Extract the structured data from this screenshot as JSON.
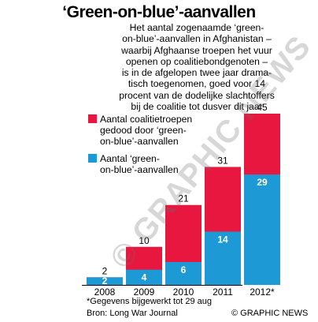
{
  "title": "‘Green-on-blue’-aanvallen",
  "intro": [
    "Het aantal zogenaamde ‘green-",
    "on-blue’-aanvallen in Afghanistan –",
    "waarbij Afghaanse troepen het vuur",
    "openen op coalitiebondgenoten –",
    "is in de afgelopen twee jaar drama-",
    "tisch toegenomen, goed voor 14",
    "procent van de dodelijke slachtoffers",
    "bij de coalitie tot dusver dit jaar"
  ],
  "footnote": "*Gegevens bijgewerkt tot 29 aug",
  "source": "Bron: Long War Journal",
  "credit": "© GRAPHIC NEWS",
  "watermark": "© GRAPHIC NEWS",
  "chart_data": {
    "type": "bar",
    "categories": [
      "2008",
      "2009",
      "2010",
      "2011",
      "2012*"
    ],
    "series": [
      {
        "name": "Aantal coalitietroepen gedood door ‘green-on-blue’-aanvallen",
        "values": [
          2,
          10,
          21,
          31,
          45
        ],
        "color": "#e8173f"
      },
      {
        "name": "Aantal ‘green-on-blue’-aanvallen",
        "values": [
          2,
          4,
          6,
          14,
          29
        ],
        "color": "#1d9ad6"
      }
    ],
    "legend": [
      {
        "lines": [
          "Aantal coalitietroepen",
          "gedood door ‘green-",
          "on-blue’-aanvallen"
        ],
        "color": "#e8173f"
      },
      {
        "lines": [
          "Aantal ‘green-",
          "on-blue’-aanvallen"
        ],
        "color": "#1d9ad6"
      }
    ],
    "ylim": [
      0,
      45
    ]
  }
}
